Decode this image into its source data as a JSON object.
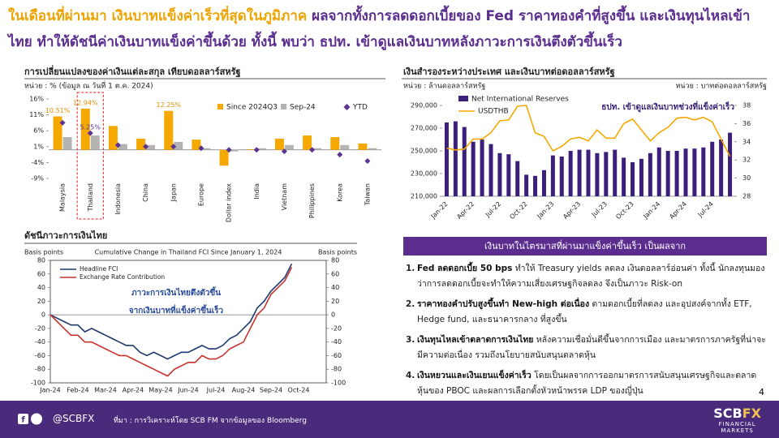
{
  "header": {
    "title_orange": "ในเดือนที่ผ่านมา เงินบาทแข็งค่าเร็วที่สุดในภูมิภาค",
    "title_purple": "ผลจากทั้งการลดดอกเบี้ยของ Fed ราคาทองคำที่สูงขึ้น และเงินทุนไหลเข้าไทย ทำให้ดัชนีค่าเงินบาทแข็งค่าขึ้นด้วย ทั้งนี้ พบว่า ธปท. เข้าดูแลเงินบาทหลังภาวะการเงินตึงตัวขึ้นเร็ว"
  },
  "chart_data": [
    {
      "type": "bar",
      "title": "การเปลี่ยนแปลงของค่าเงินแต่ละสกุล เทียบดอลลาร์สหรัฐ",
      "subtitle": "หน่วย : % (ข้อมูล ณ วันที่ 1 ต.ค. 2024)",
      "categories": [
        "Malaysia",
        "Thailand",
        "Indonesia",
        "China",
        "Japan",
        "Europe",
        "Dollar index",
        "India",
        "Vietnam",
        "Philippines",
        "Korea",
        "Taiwan"
      ],
      "series": [
        {
          "name": "Since 2024Q3",
          "color": "#f5a800",
          "values": [
            10.51,
            12.94,
            7.5,
            3.5,
            12.25,
            3.2,
            -5,
            0.2,
            3.5,
            4.5,
            4,
            2
          ],
          "value_labels": [
            "10.51%",
            "12.94%",
            null,
            null,
            "12.25%",
            null,
            null,
            null,
            null,
            null,
            null,
            null
          ]
        },
        {
          "name": "Sep-24",
          "color": "#b3b3b3",
          "values": [
            4,
            4.5,
            1.8,
            1.5,
            2.5,
            0.5,
            -0.5,
            0.5,
            1.5,
            0.5,
            1.5,
            0.5
          ]
        },
        {
          "name": "YTD",
          "color": "#5b3393",
          "type": "scatter",
          "values": [
            8.5,
            5.25,
            1.5,
            1,
            1,
            0.5,
            0,
            0,
            -0.5,
            0,
            -1.5,
            -3.5
          ],
          "value_labels": [
            null,
            "5.25%",
            null,
            null,
            null,
            null,
            null,
            null,
            null,
            null,
            null,
            null
          ]
        }
      ],
      "ylim": [
        -9,
        16
      ],
      "yticks": [
        {
          "value": -9,
          "label": "-9%"
        },
        {
          "value": -4,
          "label": "-4%"
        },
        {
          "value": 1,
          "label": "1%"
        },
        {
          "value": 6,
          "label": "6%"
        },
        {
          "value": 11,
          "label": "11%"
        },
        {
          "value": 16,
          "label": "16%"
        }
      ],
      "grid": false,
      "legend": "upper right"
    },
    {
      "type": "bar",
      "title": "เงินสำรองระหว่างประเทศ และเงินบาทต่อดอลลาร์สหรัฐ",
      "ylabel": "หน่วย : ล้านดอลลาร์สหรัฐ",
      "y2label": "หน่วย : บาทต่อดอลลาร์สหรัฐ",
      "annotation": "ธปท. เข้าดูแลเงินบาทช่วงที่แข็งค่าเร็ว",
      "categories": [
        "Jan-22",
        null,
        null,
        "Apr-22",
        null,
        null,
        "Jul-22",
        null,
        null,
        "Oct-22",
        null,
        null,
        "Jan-23",
        null,
        null,
        "Apr-23",
        null,
        null,
        "Jul-23",
        null,
        null,
        "Oct-23",
        null,
        null,
        "Jan-24",
        null,
        null,
        "Apr-24",
        null,
        null,
        "Jul-24",
        null,
        null
      ],
      "series": [
        {
          "name": "Net International Reserves",
          "color": "#3b1f7a",
          "values": [
            275000,
            276000,
            271000,
            258000,
            260000,
            256000,
            248000,
            247000,
            241000,
            229000,
            228000,
            233000,
            246000,
            245000,
            250000,
            251000,
            251000,
            248000,
            249000,
            251000,
            244000,
            240000,
            243000,
            248000,
            253000,
            250000,
            250000,
            252000,
            252000,
            253000,
            258000,
            260000,
            266000
          ]
        },
        {
          "name": "USDTHB",
          "color": "#f5a800",
          "type": "line",
          "axis": "y2",
          "values": [
            33.3,
            33.1,
            33.2,
            34.3,
            34.3,
            35.0,
            36.3,
            36.4,
            37.9,
            38.0,
            35.0,
            34.6,
            33.0,
            33.5,
            34.3,
            34.5,
            34.1,
            35.3,
            34.4,
            34.4,
            36.0,
            36.5,
            35.3,
            34.1,
            35.0,
            35.6,
            36.6,
            36.7,
            36.4,
            36.7,
            36.2,
            34.3,
            32.4
          ]
        }
      ],
      "ylim": [
        210000,
        290000
      ],
      "yticks": [
        {
          "value": 210000,
          "label": "210,000"
        },
        {
          "value": 230000,
          "label": "230,000"
        },
        {
          "value": 250000,
          "label": "250,000"
        },
        {
          "value": 270000,
          "label": "270,000"
        },
        {
          "value": 290000,
          "label": "290,000"
        }
      ],
      "y2lim": [
        28,
        38
      ],
      "y2ticks": [
        28,
        30,
        32,
        34,
        36,
        38
      ],
      "grid": false,
      "legend": "upper left"
    },
    {
      "type": "line",
      "panel_title": "ดัชนีภาวะการเงินไทย",
      "title": "Cumulative Change in Thailand FCI Since January 1, 2024",
      "ylabel": "Basis points",
      "y2label": "Basis points",
      "annotation": [
        "ภาวะการเงินไทยตึงตัวขึ้น",
        "จากเงินบาทที่แข็งค่าขึ้นเร็ว"
      ],
      "categories": [
        "Jan-24",
        null,
        null,
        null,
        "Feb-24",
        null,
        null,
        null,
        "Mar-24",
        null,
        null,
        null,
        "Apr-24",
        null,
        null,
        null,
        "May-24",
        null,
        null,
        null,
        "Jun-24",
        null,
        null,
        null,
        "Jul-24",
        null,
        null,
        null,
        "Aug-24",
        null,
        null,
        null,
        "Sep-24",
        null,
        null,
        null,
        "Oct-24",
        null,
        null,
        null
      ],
      "series": [
        {
          "name": "Headline FCI",
          "color": "#1f3a6e",
          "values": [
            0,
            -5,
            -10,
            -15,
            -15,
            -25,
            -20,
            -25,
            -30,
            -35,
            -40,
            -45,
            -45,
            -55,
            -60,
            -55,
            -60,
            -65,
            -60,
            -55,
            -55,
            -50,
            -45,
            -50,
            -50,
            -45,
            -35,
            -30,
            -20,
            -10,
            10,
            20,
            35,
            45,
            55,
            75,
            null,
            null,
            null,
            null
          ]
        },
        {
          "name": "Exchange Rate Contribution",
          "color": "#c8322f",
          "values": [
            0,
            -10,
            -20,
            -30,
            -30,
            -40,
            -40,
            -45,
            -50,
            -55,
            -60,
            -60,
            -65,
            -70,
            -75,
            -80,
            -85,
            -90,
            -80,
            -75,
            -70,
            -70,
            -60,
            -65,
            -65,
            -60,
            -50,
            -45,
            -40,
            -20,
            0,
            10,
            30,
            40,
            50,
            70,
            null,
            null,
            null,
            null
          ]
        }
      ],
      "ylim": [
        -100,
        80
      ],
      "yticks": [
        -100,
        -80,
        -60,
        -40,
        -20,
        0,
        20,
        40,
        60,
        80
      ],
      "y2lim": [
        -100,
        80
      ],
      "y2ticks": [
        -100,
        -80,
        -60,
        -40,
        -20,
        0,
        20,
        40,
        60,
        80
      ],
      "grid": false,
      "legend": "upper left"
    }
  ],
  "panel": {
    "heading": "เงินบาทในไตรมาสที่ผ่านมาแข็งค่าขึ้นเร็ว เป็นผลจาก",
    "items": [
      {
        "num": "1.",
        "bold": "Fed ลดดอกเบี้ย 50 bps",
        "text": " ทำให้ Treasury yields ลดลง เงินดอลลาร์อ่อนค่า ทั้งนี้ นักลงทุนมองว่าการลดดอกเบี้ยจะทำให้ความเสี่ยงเศรษฐกิจลดลง จึงเป็นภาวะ Risk-on"
      },
      {
        "num": "2.",
        "bold": "ราคาทองคำปรับสูงขึ้นทำ New-high ต่อเนื่อง",
        "text": " ตามดอกเบี้ยที่ลดลง และอุปสงค์จากทั้ง ETF, Hedge fund, และธนาคารกลาง ที่สูงขึ้น"
      },
      {
        "num": "3.",
        "bold": "เงินทุนไหลเข้าตลาดการเงินไทย",
        "text": " หลังความเชื่อมั่นดีขึ้นจากการเมือง และมาตรการภาครัฐที่น่าจะมีความต่อเนื่อง รวมถึงนโยบายสนับสนุนตลาดหุ้น"
      },
      {
        "num": "4.",
        "bold": "เงินหยวนและเงินเยนแข็งค่าเร็ว",
        "text": " โดยเป็นผลจากการออกมาตรการสนับสนุนเศรษฐกิจและตลาดหุ้นของ PBOC และผลการเลือกตั้งหัวหน้าพรรค LDP ของญี่ปุ่น"
      }
    ]
  },
  "page_number": 4,
  "footer": {
    "handle": "@SCBFX",
    "source": "ที่มา : การวิเคราะห์โดย SCB FM จากข้อมูลของ Bloomberg",
    "logo_a": "SCB",
    "logo_b": "FX",
    "logo_sub": [
      "FINANCIAL",
      "MARKETS"
    ]
  }
}
